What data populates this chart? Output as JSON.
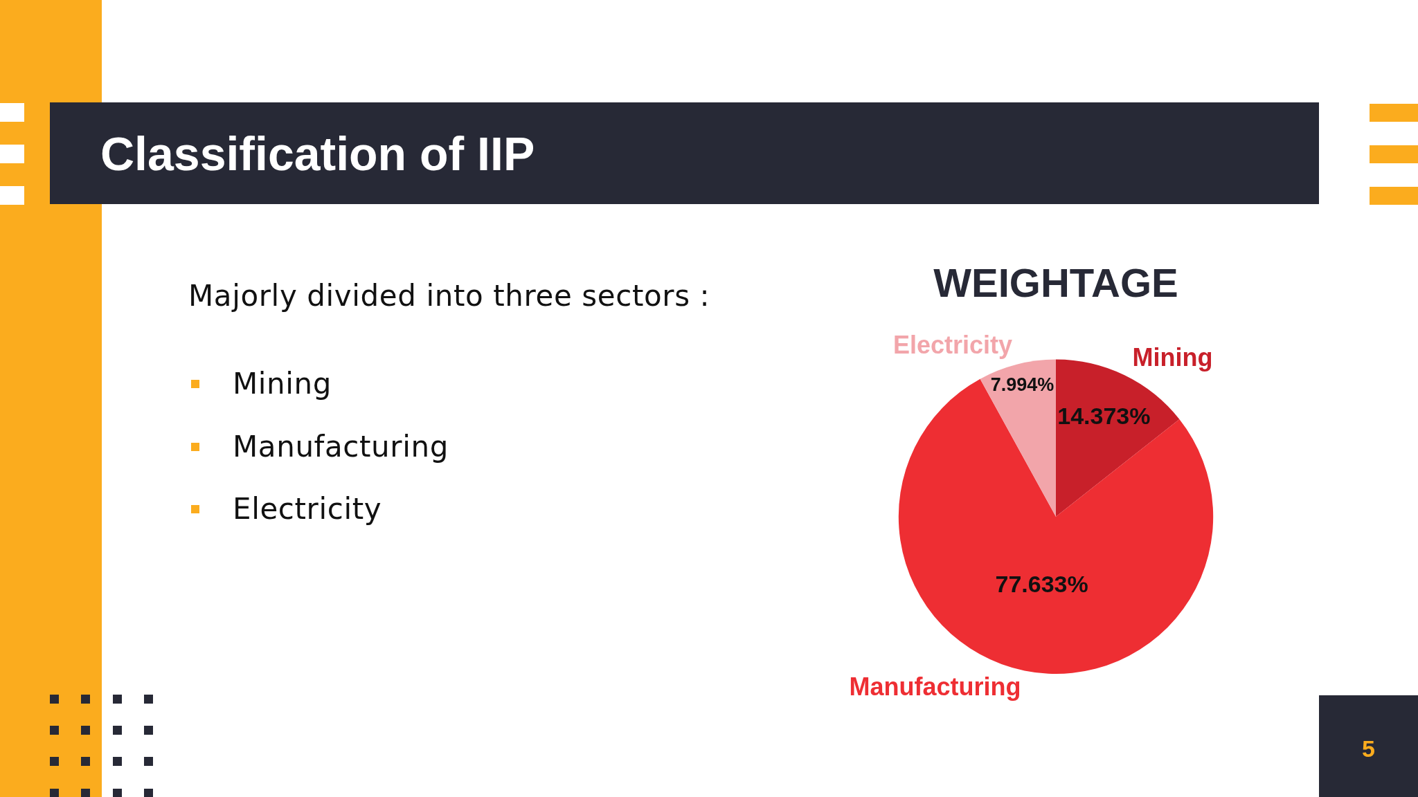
{
  "chart_data": {
    "type": "pie",
    "title": "Classification of IIP",
    "subtitle": "WEIGHTAGE",
    "categories": [
      "Mining",
      "Manufacturing",
      "Electricity"
    ],
    "values": [
      14.373,
      77.633,
      7.994
    ],
    "colors": [
      "#c8202a",
      "#ee2e33",
      "#f2a5aa"
    ],
    "value_labels": [
      "14.373%",
      "77.633%",
      "7.994%"
    ],
    "annotations": [
      "Majorly divided into three sectors :",
      "Mining",
      "Manufacturing",
      "Electricity",
      "5"
    ]
  }
}
